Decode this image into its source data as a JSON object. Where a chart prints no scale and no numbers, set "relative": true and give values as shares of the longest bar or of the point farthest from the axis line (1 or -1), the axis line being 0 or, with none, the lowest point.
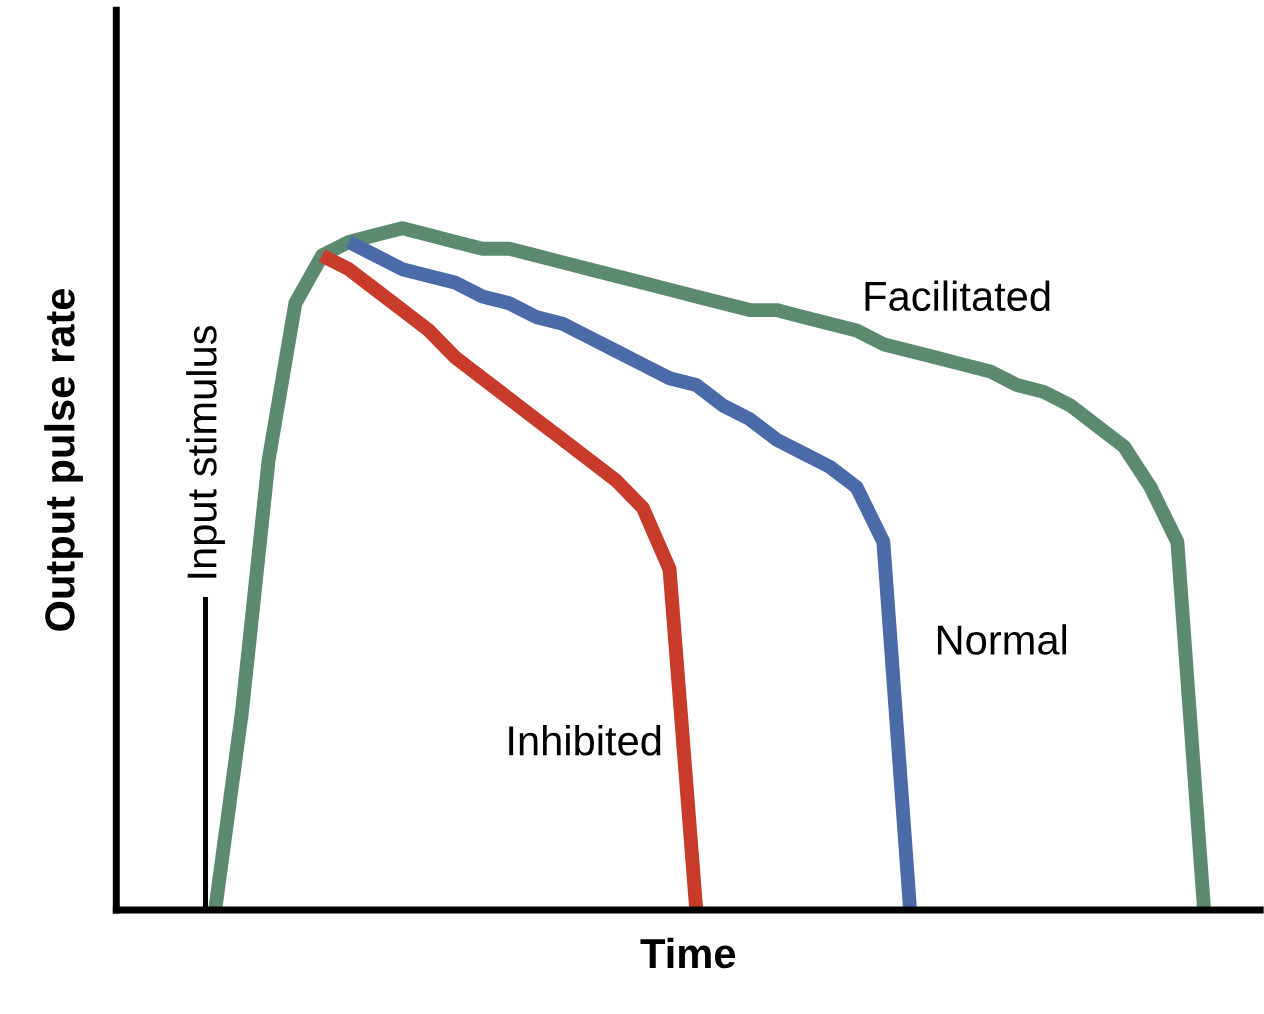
{
  "chart_data": {
    "type": "line",
    "relative": true,
    "xlabel": "Time",
    "ylabel": "Output pulse rate",
    "tick_labels": false,
    "categories": [
      null,
      null,
      null,
      null,
      null,
      null,
      null,
      null,
      null,
      null,
      null,
      null,
      null,
      null,
      null,
      null,
      null,
      null,
      null,
      null,
      null,
      null,
      null,
      null,
      null,
      null,
      null,
      null,
      null,
      null,
      null,
      null,
      null,
      null,
      null,
      null,
      null,
      null
    ],
    "series": [
      {
        "name": "Facilitated",
        "color": "#5b8a6e",
        "values": [
          0,
          0.29,
          0.66,
          0.89,
          0.96,
          0.98,
          0.99,
          1.0,
          0.99,
          0.98,
          0.97,
          0.97,
          0.96,
          0.95,
          0.94,
          0.93,
          0.92,
          0.91,
          0.9,
          0.89,
          0.88,
          0.88,
          0.87,
          0.86,
          0.85,
          0.83,
          0.82,
          0.81,
          0.8,
          0.79,
          0.77,
          0.76,
          0.74,
          0.71,
          0.68,
          0.62,
          0.54,
          0
        ]
      },
      {
        "name": "Normal",
        "color": "#4a6aa8",
        "values": [
          null,
          null,
          null,
          null,
          null,
          0.98,
          0.96,
          0.94,
          0.93,
          0.92,
          0.9,
          0.89,
          0.87,
          0.86,
          0.84,
          0.82,
          0.8,
          0.78,
          0.77,
          0.74,
          0.72,
          0.69,
          0.67,
          0.65,
          0.62,
          0.54,
          0,
          null,
          null,
          null,
          null,
          null,
          null,
          null,
          null,
          null,
          null,
          null
        ]
      },
      {
        "name": "Inhibited",
        "color": "#c83a2a",
        "values": [
          null,
          null,
          null,
          null,
          0.96,
          0.94,
          0.91,
          0.88,
          0.85,
          0.81,
          0.78,
          0.75,
          0.72,
          0.69,
          0.66,
          0.63,
          0.59,
          0.5,
          0,
          null,
          null,
          null,
          null,
          null,
          null,
          null,
          null,
          null,
          null,
          null,
          null,
          null,
          null,
          null,
          null,
          null,
          null,
          null
        ]
      }
    ],
    "annotations": [
      "Input stimulus"
    ]
  }
}
